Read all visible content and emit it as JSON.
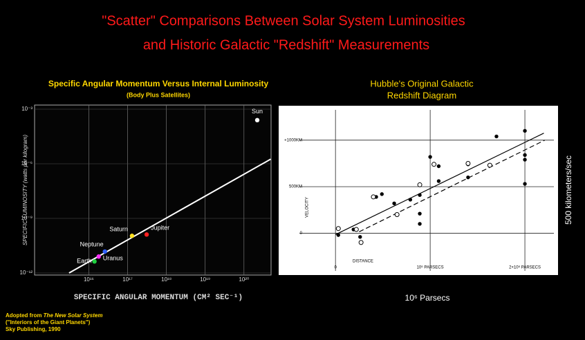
{
  "title": [
    "\"Scatter\" Comparisons Between Solar System Luminosities",
    "and Historic Galactic \"Redshift\" Measurements"
  ],
  "source": {
    "prefix": "Adopted from",
    "book": "The New Solar System",
    "lines": [
      "(\"Interiors of the Giant Planets\")",
      "Sky Publishing, 1990"
    ]
  },
  "chart_data": [
    {
      "type": "scatter",
      "title": "Specific Angular Momentum Versus Internal Luminosity",
      "subtitle": "(Body Plus Satellites)",
      "x_label": "SPECIFIC ANGULAR MOMENTUM (CM² SEC⁻¹)",
      "y_label": "SPECIFIC LUMINOSITY (watts per kilogram)",
      "log_x": true,
      "log_y": true,
      "grid": true,
      "xlim": [
        400000000000000.0,
        5e+20
      ],
      "ylim": [
        1e-12,
        0.001
      ],
      "xticks": [
        {
          "value": 1e+16,
          "label": "10¹⁶"
        },
        {
          "value": 1e+17,
          "label": "10¹⁷"
        },
        {
          "value": 1e+18,
          "label": "10¹⁸"
        },
        {
          "value": 1e+19,
          "label": "10¹⁹"
        },
        {
          "value": 1e+20,
          "label": "10²⁰"
        }
      ],
      "yticks": [
        {
          "value": 0.001,
          "label": "10⁻³"
        },
        {
          "value": 1e-06,
          "label": "10⁻⁶"
        },
        {
          "value": 1e-09,
          "label": "10⁻⁹"
        },
        {
          "value": 1e-12,
          "label": "10⁻¹²"
        }
      ],
      "labels": [
        "Sun",
        "Jupiter",
        "Saturn",
        "Neptune",
        "Uranus",
        "Earth"
      ],
      "x": [
        2.2e+20,
        3.1e+17,
        1.3e+17,
        2.6e+16,
        1.8e+16,
        1.4e+16
      ],
      "values": [
        0.00025,
        1.3e-10,
        1.1e-10,
        1.5e-11,
        8e-12,
        4.3e-12
      ],
      "colors": [
        "#ffffff",
        "#ff2020",
        "#ffe020",
        "#3060ff",
        "#ff30ff",
        "#20d040"
      ],
      "trend_line": {
        "x": [
          3100000000000000.0,
          4.9e+20
        ],
        "values": [
          1e-12,
          1.8e-06
        ]
      }
    },
    {
      "type": "scatter",
      "title": [
        "Hubble's Original Galactic",
        "Redshift Diagram"
      ],
      "x_label": "DISTANCE",
      "y_label": "VELOCITY",
      "x_caption": "10⁶ Parsecs",
      "y_caption": "500 kilometers/sec",
      "grid": true,
      "xlim": [
        -600000,
        2350000
      ],
      "ylim": [
        -450,
        1370
      ],
      "xticks": [
        0,
        {
          "value": 1000000,
          "label": "10⁶ PARSECS"
        },
        {
          "value": 2000000,
          "label": "2×10⁶ PARSECS"
        }
      ],
      "yticks": [
        0,
        {
          "value": 500,
          "label": "500KM"
        },
        {
          "value": 1000,
          "label": "+1000KM"
        }
      ],
      "series": [
        {
          "marker": "filled",
          "color": "#000000",
          "x": [
            30000,
            190000,
            260000,
            430000,
            490000,
            620000,
            790000,
            890000,
            890000,
            890000,
            1000000,
            1090000,
            1090000,
            1400000,
            1400000,
            1700000,
            2000000,
            2000000,
            2000000,
            2000000
          ],
          "values": [
            -20,
            40,
            -40,
            390,
            420,
            320,
            360,
            100,
            210,
            410,
            820,
            560,
            720,
            600,
            740,
            1040,
            1100,
            840,
            790,
            530
          ]
        },
        {
          "marker": "open",
          "color": "#000000",
          "x": [
            30000,
            220000,
            270000,
            400000,
            650000,
            890000,
            1040000,
            1400000,
            1630000
          ],
          "values": [
            50,
            40,
            -100,
            390,
            200,
            520,
            740,
            750,
            730
          ]
        }
      ],
      "lines": [
        {
          "style": "solid",
          "x": [
            0,
            2200000
          ],
          "values": [
            -15,
            1075
          ]
        },
        {
          "style": "dashed",
          "x": [
            250000,
            2210000
          ],
          "values": [
            15,
            1000
          ]
        }
      ]
    }
  ]
}
